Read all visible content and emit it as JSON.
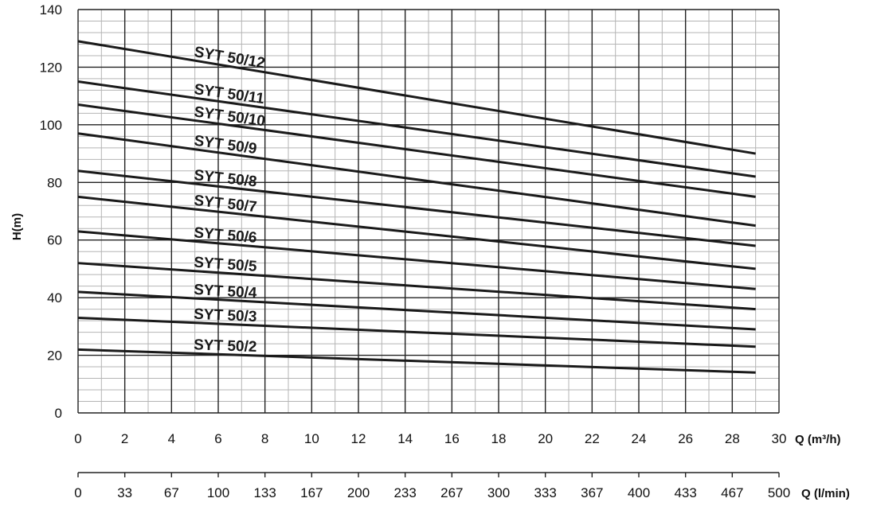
{
  "chart_data": {
    "type": "line",
    "ylabel": "H(m)",
    "xlabel": "Q (m³/h)",
    "xlabel_secondary": "Q (l/min)",
    "xlim": [
      0,
      30
    ],
    "ylim": [
      0,
      140
    ],
    "x_ticks": [
      "0",
      "2",
      "4",
      "6",
      "8",
      "10",
      "12",
      "14",
      "16",
      "18",
      "20",
      "22",
      "24",
      "26",
      "28",
      "30"
    ],
    "x_ticks_secondary": [
      "0",
      "33",
      "67",
      "100",
      "133",
      "167",
      "200",
      "233",
      "267",
      "300",
      "333",
      "367",
      "400",
      "433",
      "467",
      "500"
    ],
    "y_ticks": [
      "0",
      "20",
      "40",
      "60",
      "80",
      "100",
      "120",
      "140"
    ],
    "grid": true,
    "series": [
      {
        "name": "SYT 50/12",
        "x": [
          0,
          29
        ],
        "y": [
          129,
          90
        ]
      },
      {
        "name": "SYT 50/11",
        "x": [
          0,
          29
        ],
        "y": [
          115,
          82
        ]
      },
      {
        "name": "SYT 50/10",
        "x": [
          0,
          29
        ],
        "y": [
          107,
          75
        ]
      },
      {
        "name": "SYT 50/9",
        "x": [
          0,
          29
        ],
        "y": [
          97,
          65
        ]
      },
      {
        "name": "SYT 50/8",
        "x": [
          0,
          29
        ],
        "y": [
          84,
          58
        ]
      },
      {
        "name": "SYT 50/7",
        "x": [
          0,
          29
        ],
        "y": [
          75,
          50
        ]
      },
      {
        "name": "SYT 50/6",
        "x": [
          0,
          29
        ],
        "y": [
          63,
          43
        ]
      },
      {
        "name": "SYT 50/5",
        "x": [
          0,
          29
        ],
        "y": [
          52,
          36
        ]
      },
      {
        "name": "SYT 50/4",
        "x": [
          0,
          29
        ],
        "y": [
          42,
          29
        ]
      },
      {
        "name": "SYT 50/3",
        "x": [
          0,
          29
        ],
        "y": [
          33,
          23
        ]
      },
      {
        "name": "SYT 50/2",
        "x": [
          0,
          29
        ],
        "y": [
          22,
          14
        ]
      }
    ]
  }
}
